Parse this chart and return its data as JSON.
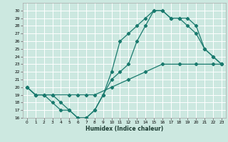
{
  "title": "",
  "xlabel": "Humidex (Indice chaleur)",
  "background_color": "#cce8e0",
  "grid_color": "#ffffff",
  "line_color": "#1a7a6e",
  "xlim": [
    -0.5,
    23.5
  ],
  "ylim": [
    16,
    31
  ],
  "xticks": [
    0,
    1,
    2,
    3,
    4,
    5,
    6,
    7,
    8,
    9,
    10,
    11,
    12,
    13,
    14,
    15,
    16,
    17,
    18,
    19,
    20,
    21,
    22,
    23
  ],
  "yticks": [
    16,
    17,
    18,
    19,
    20,
    21,
    22,
    23,
    24,
    25,
    26,
    27,
    28,
    29,
    30
  ],
  "line1_x": [
    0,
    1,
    2,
    3,
    4,
    5,
    6,
    7,
    8,
    9,
    10,
    11,
    12,
    13,
    14,
    15,
    16,
    17,
    18,
    19,
    20,
    21,
    22,
    23
  ],
  "line1_y": [
    20,
    19,
    19,
    19,
    18,
    17,
    16,
    16,
    17,
    19,
    21,
    22,
    23,
    26,
    28,
    30,
    30,
    29,
    29,
    29,
    28,
    25,
    24,
    23
  ],
  "line2_x": [
    0,
    1,
    2,
    3,
    4,
    5,
    6,
    7,
    8,
    9,
    10,
    11,
    12,
    13,
    14,
    15,
    16,
    17,
    18,
    19,
    20,
    21,
    22,
    23
  ],
  "line2_y": [
    20,
    19,
    19,
    18,
    17,
    17,
    16,
    16,
    17,
    19,
    22,
    26,
    27,
    28,
    29,
    30,
    30,
    29,
    29,
    28,
    27,
    25,
    24,
    23
  ],
  "line3_x": [
    0,
    1,
    2,
    3,
    5,
    6,
    7,
    8,
    10,
    12,
    14,
    16,
    18,
    20,
    22,
    23
  ],
  "line3_y": [
    20,
    19,
    19,
    19,
    19,
    19,
    19,
    19,
    20,
    21,
    22,
    23,
    23,
    23,
    23,
    23
  ]
}
